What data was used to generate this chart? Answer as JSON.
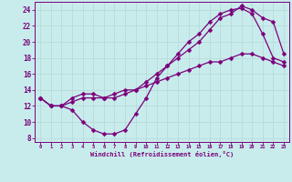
{
  "xlabel": "Windchill (Refroidissement éolien,°C)",
  "bg_color": "#c8ecec",
  "line_color": "#7b007b",
  "grid_color": "#b8dada",
  "xlim": [
    -0.5,
    23.5
  ],
  "ylim": [
    7.5,
    25.0
  ],
  "xticks": [
    0,
    1,
    2,
    3,
    4,
    5,
    6,
    7,
    8,
    9,
    10,
    11,
    12,
    13,
    14,
    15,
    16,
    17,
    18,
    19,
    20,
    21,
    22,
    23
  ],
  "yticks": [
    8,
    10,
    12,
    14,
    16,
    18,
    20,
    22,
    24
  ],
  "curve1_x": [
    0,
    1,
    2,
    3,
    4,
    5,
    6,
    7,
    8,
    9,
    10,
    11,
    12,
    13,
    14,
    15,
    16,
    17,
    18,
    19,
    20,
    21,
    22,
    23
  ],
  "curve1_y": [
    13.0,
    12.0,
    12.0,
    11.5,
    10.0,
    9.0,
    8.5,
    8.5,
    9.0,
    11.0,
    13.0,
    15.5,
    17.0,
    18.5,
    20.0,
    21.0,
    22.5,
    23.5,
    24.0,
    24.2,
    23.5,
    21.0,
    18.0,
    17.5
  ],
  "curve2_x": [
    0,
    1,
    2,
    3,
    4,
    5,
    6,
    7,
    8,
    9,
    10,
    11,
    12,
    13,
    14,
    15,
    16,
    17,
    18,
    19,
    20,
    21,
    22,
    23
  ],
  "curve2_y": [
    13.0,
    12.0,
    12.0,
    13.0,
    13.5,
    13.5,
    13.0,
    13.5,
    14.0,
    14.0,
    15.0,
    16.0,
    17.0,
    18.0,
    19.0,
    20.0,
    21.5,
    23.0,
    23.5,
    24.5,
    24.0,
    23.0,
    22.5,
    18.5
  ],
  "curve3_x": [
    0,
    1,
    2,
    3,
    4,
    5,
    6,
    7,
    8,
    9,
    10,
    11,
    12,
    13,
    14,
    15,
    16,
    17,
    18,
    19,
    20,
    21,
    22,
    23
  ],
  "curve3_y": [
    13.0,
    12.0,
    12.0,
    12.5,
    13.0,
    13.0,
    13.0,
    13.0,
    13.5,
    14.0,
    14.5,
    15.0,
    15.5,
    16.0,
    16.5,
    17.0,
    17.5,
    17.5,
    18.0,
    18.5,
    18.5,
    18.0,
    17.5,
    17.0
  ],
  "marker_size": 2.5,
  "line_width": 0.9
}
